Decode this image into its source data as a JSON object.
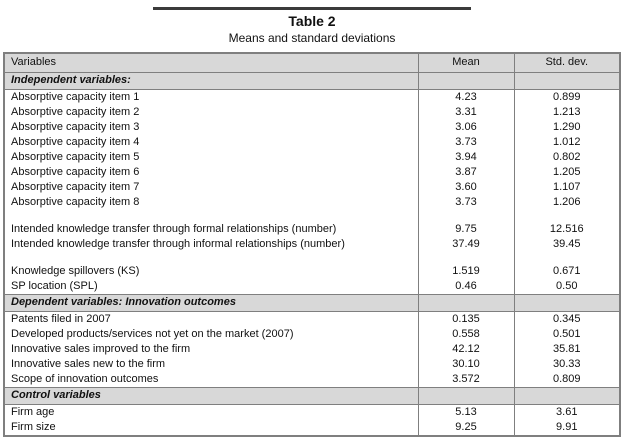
{
  "title": {
    "label": "Table 2",
    "subtitle": "Means and standard deviations"
  },
  "colors": {
    "section_bg": "#d8d8d8",
    "border": "#7f7f7f",
    "title_rule": "#3b3b3b"
  },
  "table": {
    "columns": [
      "Variables",
      "Mean",
      "Std. dev."
    ],
    "sections": [
      {
        "header": "Independent variables:",
        "groups": [
          {
            "rows": [
              {
                "variable": "Absorptive capacity item 1",
                "mean": "4.23",
                "std": "0.899"
              },
              {
                "variable": "Absorptive capacity item 2",
                "mean": "3.31",
                "std": "1.213"
              },
              {
                "variable": "Absorptive capacity item 3",
                "mean": "3.06",
                "std": "1.290"
              },
              {
                "variable": "Absorptive capacity item 4",
                "mean": "3.73",
                "std": "1.012"
              },
              {
                "variable": "Absorptive capacity item 5",
                "mean": "3.94",
                "std": "0.802"
              },
              {
                "variable": "Absorptive capacity item 6",
                "mean": "3.87",
                "std": "1.205"
              },
              {
                "variable": "Absorptive capacity item 7",
                "mean": "3.60",
                "std": "1.107"
              },
              {
                "variable": "Absorptive capacity item 8",
                "mean": "3.73",
                "std": "1.206"
              }
            ]
          },
          {
            "rows": [
              {
                "variable": "Intended knowledge transfer through formal relationships (number)",
                "mean": "9.75",
                "std": "12.516"
              },
              {
                "variable": "Intended knowledge transfer through informal relationships (number)",
                "mean": "37.49",
                "std": "39.45"
              }
            ]
          },
          {
            "rows": [
              {
                "variable": "Knowledge spillovers (KS)",
                "mean": "1.519",
                "std": "0.671"
              },
              {
                "variable": "SP location (SPL)",
                "mean": "0.46",
                "std": "0.50"
              }
            ]
          }
        ]
      },
      {
        "header": "Dependent variables: Innovation outcomes",
        "groups": [
          {
            "rows": [
              {
                "variable": "Patents filed in 2007",
                "mean": "0.135",
                "std": "0.345"
              },
              {
                "variable": "Developed products/services not yet on the market  (2007)",
                "mean": "0.558",
                "std": "0.501"
              },
              {
                "variable": "Innovative sales improved to the firm",
                "mean": "42.12",
                "std": "35.81"
              },
              {
                "variable": "Innovative sales new to the firm",
                "mean": "30.10",
                "std": "30.33"
              },
              {
                "variable": "Scope of innovation outcomes",
                "mean": "3.572",
                "std": "0.809"
              }
            ]
          }
        ]
      },
      {
        "header": "Control variables",
        "groups": [
          {
            "rows": [
              {
                "variable": "Firm age",
                "mean": "5.13",
                "std": "3.61"
              },
              {
                "variable": "Firm size",
                "mean": "9.25",
                "std": "9.91"
              }
            ]
          }
        ]
      }
    ]
  }
}
